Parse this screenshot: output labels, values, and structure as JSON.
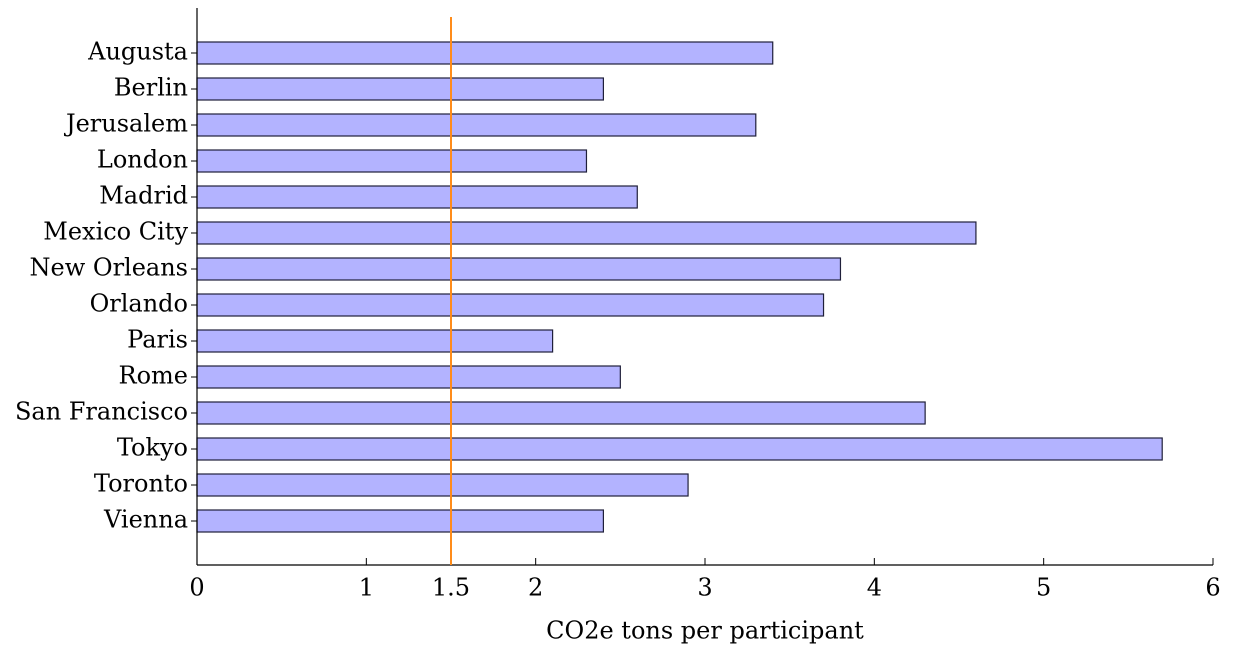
{
  "chart_data": {
    "type": "bar",
    "orientation": "horizontal",
    "categories": [
      "Augusta",
      "Berlin",
      "Jerusalem",
      "London",
      "Madrid",
      "Mexico City",
      "New Orleans",
      "Orlando",
      "Paris",
      "Rome",
      "San Francisco",
      "Tokyo",
      "Toronto",
      "Vienna"
    ],
    "values": [
      3.4,
      2.4,
      3.3,
      2.3,
      2.6,
      4.6,
      3.8,
      3.7,
      2.1,
      2.5,
      4.3,
      5.7,
      2.9,
      2.4
    ],
    "xlabel": "CO2e tons per participant",
    "xlim": [
      0,
      6
    ],
    "xticks": [
      "0",
      "1",
      "1.5",
      "2",
      "3",
      "4",
      "5",
      "6"
    ],
    "reference_line": {
      "x": 1.5,
      "color": "#ff8c1a"
    },
    "colors": {
      "bar_fill": "#b3b3ff",
      "bar_stroke": "#1f1f3a",
      "reference": "#ff8c1a"
    },
    "grid": false
  }
}
